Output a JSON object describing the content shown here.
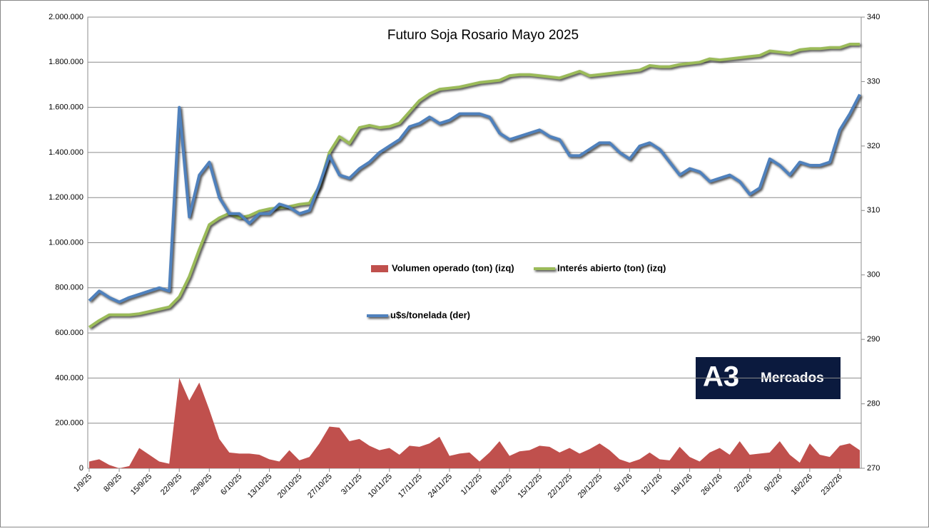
{
  "chart_data": {
    "type": "combo",
    "title": "Futuro Soja Rosario Mayo 2025",
    "categories": [
      "1/9/25",
      null,
      null,
      "8/9/25",
      null,
      null,
      "15/9/25",
      null,
      null,
      "22/9/25",
      null,
      null,
      "29/9/25",
      null,
      null,
      "6/10/25",
      null,
      null,
      "13/10/25",
      null,
      null,
      "20/10/25",
      null,
      null,
      "27/10/25",
      null,
      null,
      "3/11/25",
      null,
      null,
      "10/11/25",
      null,
      null,
      "17/11/25",
      null,
      null,
      "24/11/25",
      null,
      null,
      "1/12/25",
      null,
      null,
      "8/12/25",
      null,
      null,
      "15/12/25",
      null,
      null,
      "22/12/25",
      null,
      null,
      "29/12/25",
      null,
      null,
      "5/1/26",
      null,
      null,
      "12/1/26",
      null,
      null,
      "19/1/26",
      null,
      null,
      "26/1/26",
      null,
      null,
      "2/2/26",
      null,
      null,
      "9/2/26",
      null,
      null,
      "16/2/26",
      null,
      null,
      "23/2/26",
      null,
      null
    ],
    "series": [
      {
        "name": "Volumen operado (ton) (izq)",
        "kind": "area",
        "axis": "y",
        "color": "#c0504d",
        "values": [
          30000,
          40000,
          15000,
          0,
          10000,
          90000,
          60000,
          30000,
          20000,
          400000,
          300000,
          380000,
          260000,
          130000,
          70000,
          65000,
          65000,
          60000,
          40000,
          30000,
          80000,
          35000,
          50000,
          110000,
          185000,
          180000,
          120000,
          130000,
          100000,
          80000,
          90000,
          60000,
          100000,
          95000,
          110000,
          140000,
          55000,
          65000,
          70000,
          30000,
          70000,
          120000,
          55000,
          75000,
          80000,
          100000,
          95000,
          70000,
          90000,
          65000,
          85000,
          110000,
          80000,
          40000,
          25000,
          40000,
          70000,
          40000,
          35000,
          95000,
          50000,
          30000,
          70000,
          90000,
          60000,
          120000,
          60000,
          65000,
          70000,
          120000,
          60000,
          25000,
          110000,
          60000,
          50000,
          100000,
          110000,
          80000
        ]
      },
      {
        "name": "Interés abierto (ton) (izq)",
        "kind": "line",
        "axis": "y",
        "color": "#9bbb59",
        "values": [
          625000,
          655000,
          680000,
          680000,
          680000,
          685000,
          695000,
          705000,
          715000,
          760000,
          850000,
          970000,
          1080000,
          1110000,
          1130000,
          1110000,
          1120000,
          1140000,
          1150000,
          1155000,
          1160000,
          1170000,
          1175000,
          1250000,
          1400000,
          1470000,
          1440000,
          1510000,
          1520000,
          1510000,
          1515000,
          1530000,
          1580000,
          1630000,
          1660000,
          1680000,
          1685000,
          1690000,
          1700000,
          1710000,
          1715000,
          1720000,
          1740000,
          1745000,
          1745000,
          1740000,
          1735000,
          1730000,
          1745000,
          1760000,
          1740000,
          1745000,
          1750000,
          1755000,
          1760000,
          1765000,
          1785000,
          1780000,
          1780000,
          1790000,
          1795000,
          1800000,
          1815000,
          1810000,
          1815000,
          1820000,
          1825000,
          1830000,
          1850000,
          1845000,
          1840000,
          1855000,
          1860000,
          1860000,
          1865000,
          1865000,
          1880000,
          1880000
        ]
      },
      {
        "name": "u$s/tonelada (der)",
        "kind": "line",
        "axis": "y2",
        "color": "#4f81bd",
        "values": [
          296,
          297.5,
          296.5,
          295.8,
          296.5,
          297,
          297.5,
          298,
          297.5,
          326,
          309,
          315.5,
          317.5,
          312,
          309.5,
          309.5,
          308,
          309.5,
          309.5,
          311,
          310.5,
          309.5,
          310,
          314,
          318.5,
          315.5,
          315,
          316.5,
          317.5,
          319,
          320,
          321,
          323,
          323.5,
          324.5,
          323.5,
          324,
          325,
          325,
          325,
          324.5,
          322,
          321,
          321.5,
          322,
          322.5,
          321.5,
          321,
          318.5,
          318.5,
          319.5,
          320.5,
          320.5,
          319,
          318,
          320,
          320.5,
          319.5,
          317.5,
          315.5,
          316.5,
          316,
          314.5,
          315,
          315.5,
          314.5,
          312.5,
          313.5,
          318,
          317,
          315.5,
          317.5,
          317,
          317,
          317.5,
          322.5,
          325,
          328
        ]
      }
    ],
    "ylim": [
      0,
      2000000
    ],
    "yticks": [
      {
        "value": 0,
        "label": "0"
      },
      {
        "value": 200000,
        "label": "200.000"
      },
      {
        "value": 400000,
        "label": "400.000"
      },
      {
        "value": 600000,
        "label": "600.000"
      },
      {
        "value": 800000,
        "label": "800.000"
      },
      {
        "value": 1000000,
        "label": "1.000.000"
      },
      {
        "value": 1200000,
        "label": "1.200.000"
      },
      {
        "value": 1400000,
        "label": "1.400.000"
      },
      {
        "value": 1600000,
        "label": "1.600.000"
      },
      {
        "value": 1800000,
        "label": "1.800.000"
      },
      {
        "value": 2000000,
        "label": "2.000.000"
      }
    ],
    "y2lim": [
      270,
      340
    ],
    "y2ticks": [
      270,
      280,
      290,
      300,
      310,
      320,
      330,
      340
    ],
    "grid": true,
    "legend": "center"
  },
  "logo": {
    "mark": "A3",
    "text": "Mercados"
  }
}
